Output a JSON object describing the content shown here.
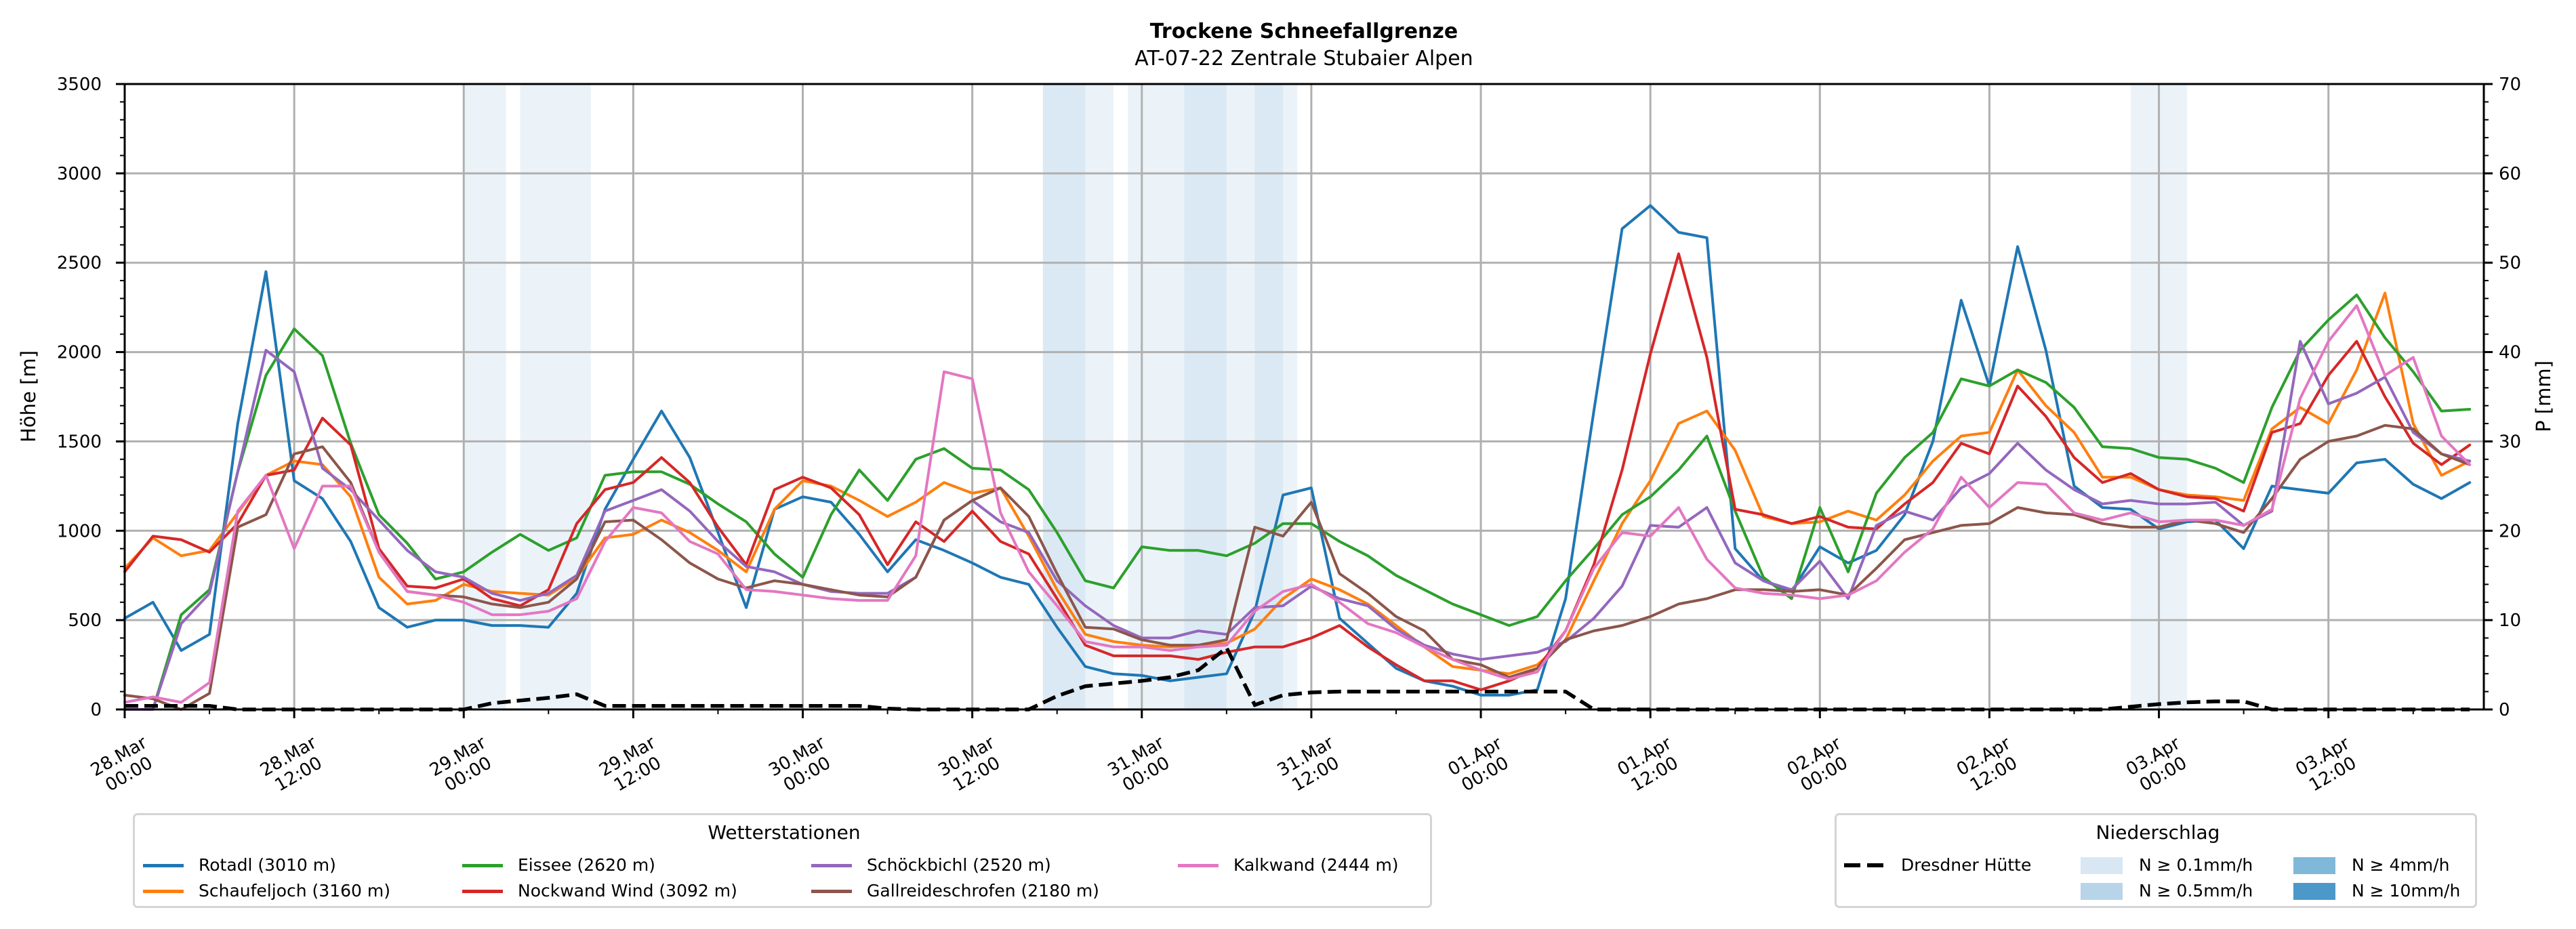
{
  "chart_data": {
    "type": "line",
    "title": "Trockene Schneefallgrenze",
    "subtitle": "AT-07-22 Zentrale Stubaier Alpen",
    "xlabel": "",
    "ylabel": "Höhe [m]",
    "ylabel_right": "P [mm]",
    "ylim": [
      0,
      3500
    ],
    "ylim_right": [
      0,
      70
    ],
    "yticks": [
      0,
      500,
      1000,
      1500,
      2000,
      2500,
      3000,
      3500
    ],
    "yticks_right": [
      0,
      10,
      20,
      30,
      40,
      50,
      60,
      70
    ],
    "xlim": [
      0,
      167
    ],
    "x_start_hour": 0,
    "x_step_hours": 2,
    "grid": true,
    "xticks": [
      {
        "hour": 0,
        "label": [
          "28.Mar",
          "00:00"
        ]
      },
      {
        "hour": 12,
        "label": [
          "28.Mar",
          "12:00"
        ]
      },
      {
        "hour": 24,
        "label": [
          "29.Mar",
          "00:00"
        ]
      },
      {
        "hour": 36,
        "label": [
          "29.Mar",
          "12:00"
        ]
      },
      {
        "hour": 48,
        "label": [
          "30.Mar",
          "00:00"
        ]
      },
      {
        "hour": 60,
        "label": [
          "30.Mar",
          "12:00"
        ]
      },
      {
        "hour": 72,
        "label": [
          "31.Mar",
          "00:00"
        ]
      },
      {
        "hour": 84,
        "label": [
          "31.Mar",
          "12:00"
        ]
      },
      {
        "hour": 96,
        "label": [
          "01.Apr",
          "00:00"
        ]
      },
      {
        "hour": 108,
        "label": [
          "01.Apr",
          "12:00"
        ]
      },
      {
        "hour": 120,
        "label": [
          "02.Apr",
          "00:00"
        ]
      },
      {
        "hour": 132,
        "label": [
          "02.Apr",
          "12:00"
        ]
      },
      {
        "hour": 144,
        "label": [
          "03.Apr",
          "00:00"
        ]
      },
      {
        "hour": 156,
        "label": [
          "03.Apr",
          "12:00"
        ]
      }
    ],
    "series": [
      {
        "name": "Rotadl (3010 m)",
        "color": "#1f77b4",
        "values": [
          510,
          600,
          330,
          420,
          1600,
          2450,
          1280,
          1180,
          940,
          570,
          460,
          500,
          500,
          470,
          470,
          460,
          650,
          1120,
          1400,
          1670,
          1410,
          990,
          570,
          1120,
          1190,
          1160,
          980,
          770,
          950,
          890,
          820,
          740,
          700,
          460,
          240,
          200,
          190,
          160,
          180,
          200,
          550,
          1200,
          1240,
          510,
          370,
          230,
          160,
          130,
          80,
          80,
          110,
          620,
          1670,
          2690,
          2820,
          2670,
          2640,
          900,
          720,
          660,
          910,
          820,
          890,
          1090,
          1500,
          2290,
          1810,
          2590,
          2010,
          1250,
          1130,
          1120,
          1010,
          1050,
          1060,
          900,
          1250,
          1230,
          1210,
          1380,
          1400,
          1260,
          1180,
          1270
        ]
      },
      {
        "name": "Schaufeljoch (3160 m)",
        "color": "#ff7f0e",
        "values": [
          790,
          960,
          860,
          890,
          1100,
          1310,
          1390,
          1370,
          1190,
          740,
          590,
          610,
          700,
          660,
          650,
          640,
          740,
          960,
          980,
          1060,
          990,
          890,
          770,
          1120,
          1280,
          1250,
          1170,
          1080,
          1160,
          1270,
          1210,
          1240,
          970,
          670,
          420,
          380,
          360,
          350,
          360,
          370,
          450,
          620,
          730,
          670,
          590,
          470,
          350,
          240,
          220,
          200,
          250,
          390,
          720,
          1040,
          1280,
          1600,
          1670,
          1450,
          1080,
          1040,
          1050,
          1110,
          1060,
          1200,
          1390,
          1530,
          1550,
          1900,
          1700,
          1550,
          1300,
          1300,
          1230,
          1200,
          1190,
          1170,
          1570,
          1690,
          1600,
          1900,
          2330,
          1600,
          1310,
          1390
        ]
      },
      {
        "name": "Eissee (2620 m)",
        "color": "#2ca02c",
        "values": [
          0,
          0,
          530,
          670,
          1330,
          1870,
          2130,
          1980,
          1490,
          1090,
          930,
          730,
          770,
          880,
          980,
          890,
          960,
          1310,
          1330,
          1330,
          1260,
          1150,
          1050,
          870,
          740,
          1090,
          1340,
          1170,
          1400,
          1460,
          1350,
          1340,
          1230,
          990,
          720,
          680,
          910,
          890,
          890,
          860,
          930,
          1040,
          1040,
          940,
          860,
          750,
          670,
          590,
          530,
          470,
          520,
          720,
          900,
          1090,
          1190,
          1340,
          1530,
          1110,
          740,
          620,
          1130,
          770,
          1210,
          1410,
          1550,
          1850,
          1810,
          1900,
          1830,
          1690,
          1470,
          1460,
          1410,
          1400,
          1350,
          1270,
          1690,
          2010,
          2180,
          2320,
          2080,
          1890,
          1670,
          1680
        ]
      },
      {
        "name": "Nockwand Wind (3092 m)",
        "color": "#d62728",
        "values": [
          770,
          970,
          950,
          880,
          1040,
          1310,
          1340,
          1630,
          1480,
          900,
          690,
          680,
          730,
          620,
          580,
          670,
          1040,
          1230,
          1270,
          1410,
          1270,
          1020,
          810,
          1230,
          1300,
          1240,
          1090,
          810,
          1050,
          940,
          1110,
          940,
          870,
          620,
          360,
          300,
          300,
          300,
          280,
          320,
          350,
          350,
          400,
          470,
          350,
          250,
          160,
          160,
          110,
          160,
          230,
          440,
          810,
          1340,
          1990,
          2550,
          1970,
          1120,
          1090,
          1040,
          1080,
          1020,
          1010,
          1150,
          1270,
          1490,
          1430,
          1810,
          1640,
          1410,
          1270,
          1320,
          1230,
          1190,
          1180,
          1110,
          1550,
          1600,
          1870,
          2060,
          1750,
          1490,
          1370,
          1480
        ]
      },
      {
        "name": "Schöckbichl (2520 m)",
        "color": "#9467bd",
        "values": [
          0,
          0,
          480,
          650,
          1330,
          2010,
          1890,
          1350,
          1230,
          1060,
          890,
          770,
          740,
          650,
          610,
          650,
          750,
          1110,
          1170,
          1230,
          1110,
          940,
          800,
          770,
          700,
          660,
          650,
          650,
          740,
          1060,
          1170,
          1050,
          990,
          720,
          580,
          470,
          400,
          400,
          440,
          420,
          570,
          580,
          690,
          620,
          580,
          450,
          360,
          310,
          280,
          300,
          320,
          380,
          510,
          690,
          1030,
          1020,
          1130,
          820,
          720,
          670,
          830,
          620,
          1030,
          1110,
          1060,
          1240,
          1320,
          1490,
          1340,
          1230,
          1150,
          1170,
          1150,
          1150,
          1160,
          1030,
          1110,
          2060,
          1710,
          1770,
          1860,
          1550,
          1430,
          1390
        ]
      },
      {
        "name": "Gallreideschrofen (2180 m)",
        "color": "#8c564b",
        "values": [
          80,
          60,
          0,
          90,
          1020,
          1090,
          1430,
          1470,
          1270,
          880,
          660,
          640,
          630,
          590,
          570,
          600,
          730,
          1050,
          1060,
          950,
          820,
          730,
          680,
          720,
          700,
          670,
          640,
          630,
          740,
          1060,
          1170,
          1240,
          1080,
          760,
          460,
          450,
          390,
          360,
          360,
          390,
          1020,
          970,
          1160,
          760,
          650,
          520,
          440,
          280,
          250,
          180,
          230,
          390,
          440,
          470,
          520,
          590,
          620,
          670,
          670,
          660,
          670,
          640,
          790,
          950,
          990,
          1030,
          1040,
          1130,
          1100,
          1090,
          1040,
          1020,
          1020,
          1060,
          1040,
          990,
          1180,
          1400,
          1500,
          1530,
          1590,
          1570,
          1430,
          1370
        ]
      },
      {
        "name": "Kalkwand (2444 m)",
        "color": "#e377c2",
        "values": [
          40,
          70,
          40,
          150,
          1110,
          1310,
          900,
          1250,
          1250,
          880,
          660,
          640,
          600,
          530,
          530,
          550,
          620,
          940,
          1130,
          1100,
          940,
          870,
          670,
          660,
          640,
          620,
          610,
          610,
          860,
          1890,
          1850,
          1100,
          770,
          580,
          380,
          350,
          350,
          330,
          350,
          360,
          550,
          660,
          700,
          600,
          480,
          430,
          350,
          280,
          220,
          170,
          210,
          440,
          790,
          990,
          970,
          1130,
          840,
          680,
          650,
          640,
          620,
          640,
          720,
          880,
          1010,
          1300,
          1130,
          1270,
          1260,
          1100,
          1060,
          1100,
          1050,
          1060,
          1060,
          1030,
          1120,
          1740,
          2060,
          2260,
          1870,
          1970,
          1530,
          1370
        ]
      }
    ],
    "precipitation": {
      "name": "Dresdner Hütte",
      "color": "#000000",
      "style": "dashed",
      "axis": "right",
      "values": [
        0.4,
        0.4,
        0.4,
        0.4,
        0,
        0,
        0,
        0,
        0,
        0,
        0,
        0,
        0,
        0.7,
        1.0,
        1.3,
        1.7,
        0.4,
        0.4,
        0.4,
        0.4,
        0.4,
        0.4,
        0.4,
        0.4,
        0.4,
        0.4,
        0.1,
        0,
        0,
        0,
        0,
        0,
        1.5,
        2.6,
        2.9,
        3.2,
        3.6,
        4.4,
        6.9,
        0.5,
        1.6,
        1.9,
        2.0,
        2.0,
        2.0,
        2.0,
        2.0,
        2.0,
        2.0,
        2.0,
        2.0,
        0,
        0,
        0,
        0,
        0,
        0,
        0,
        0,
        0,
        0,
        0,
        0,
        0,
        0,
        0,
        0,
        0,
        0,
        0,
        0.3,
        0.6,
        0.8,
        0.9,
        0.9,
        0,
        0,
        0,
        0,
        0,
        0,
        0,
        0
      ]
    },
    "precip_bands": [
      {
        "start": 24,
        "end": 27,
        "level": 0
      },
      {
        "start": 28,
        "end": 33,
        "level": 0
      },
      {
        "start": 65,
        "end": 68,
        "level": 1
      },
      {
        "start": 68,
        "end": 70,
        "level": 0
      },
      {
        "start": 71,
        "end": 75,
        "level": 0
      },
      {
        "start": 75,
        "end": 78,
        "level": 1
      },
      {
        "start": 78,
        "end": 80,
        "level": 0
      },
      {
        "start": 80,
        "end": 82,
        "level": 1
      },
      {
        "start": 82,
        "end": 83,
        "level": 0
      },
      {
        "start": 142,
        "end": 146,
        "level": 0
      }
    ],
    "legend_stations": {
      "title": "Wetterstationen",
      "placement": "bottom-left"
    },
    "legend_precip": {
      "title": "Niederschlag",
      "placement": "bottom-right",
      "items": [
        {
          "label": "N ≥ 0.1mm/h",
          "color": "#d8e7f3"
        },
        {
          "label": "N ≥ 0.5mm/h",
          "color": "#b7d4e9"
        },
        {
          "label": "N ≥ 4mm/h",
          "color": "#80b8da"
        },
        {
          "label": "N ≥ 10mm/h",
          "color": "#4b98c9"
        }
      ]
    }
  }
}
